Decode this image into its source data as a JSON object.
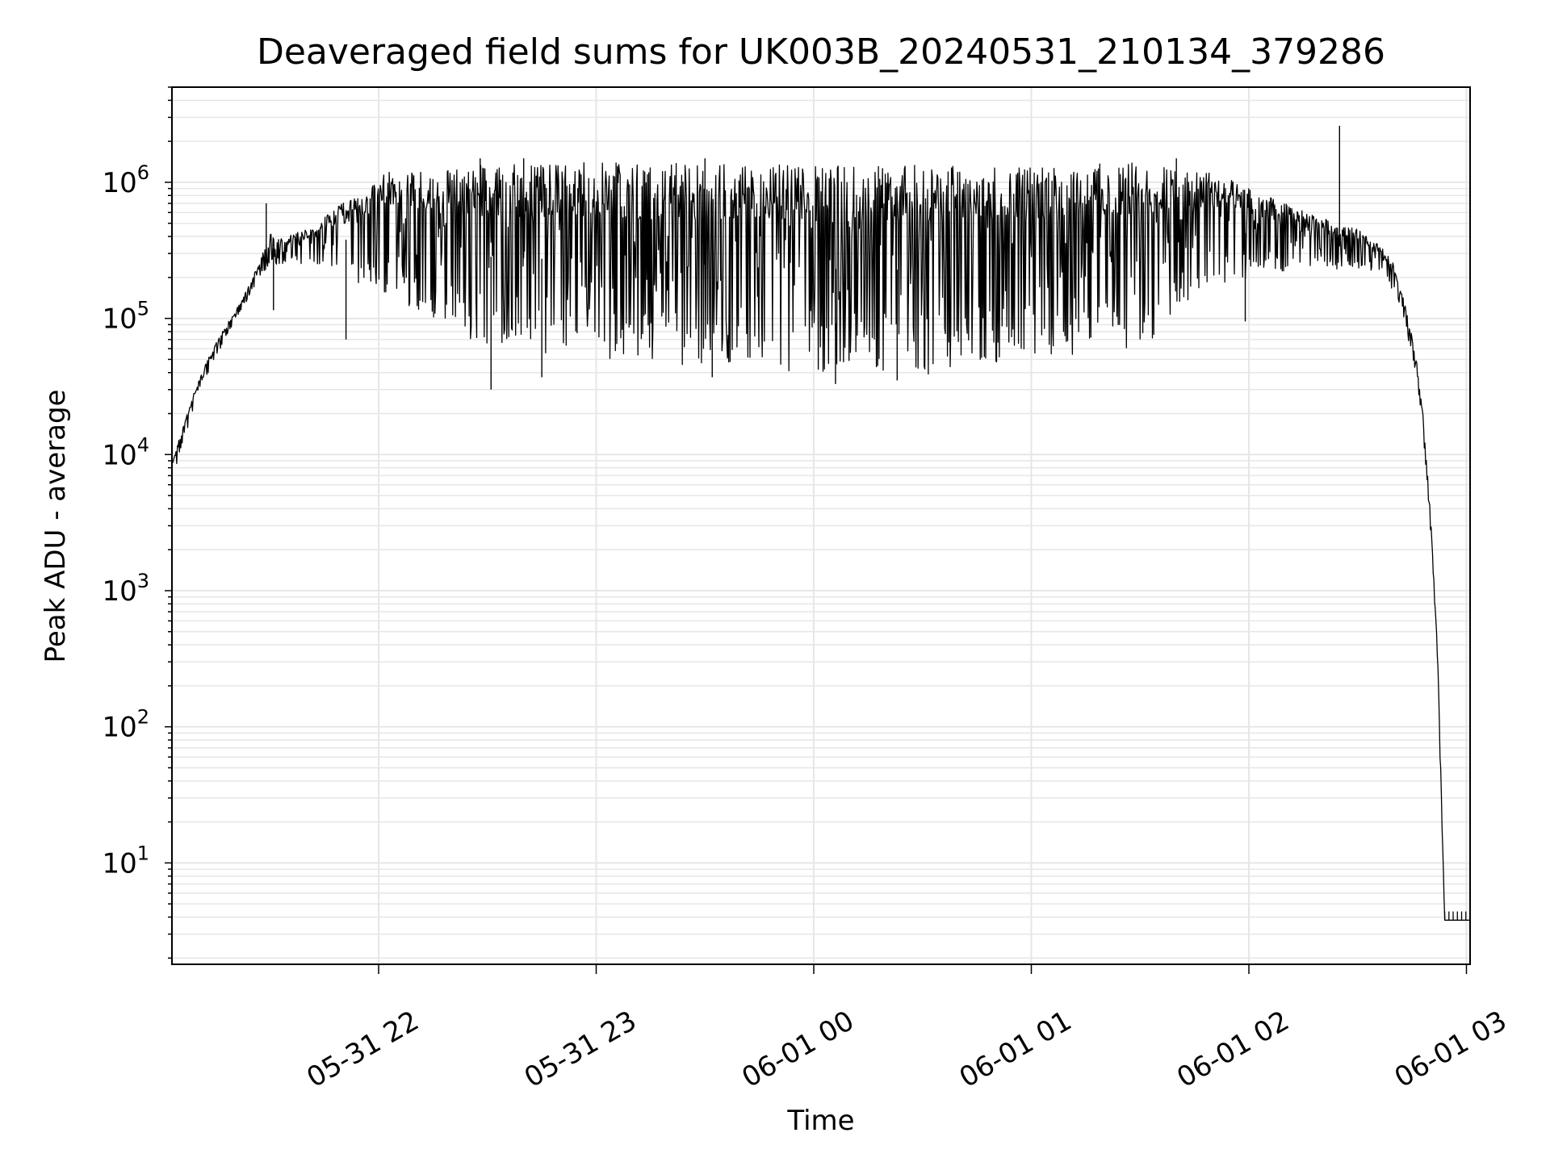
{
  "chart_data": {
    "type": "line",
    "title": "Deaveraged field sums for UK003B_20240531_210134_379286",
    "xlabel": "Time",
    "ylabel": "Peak ADU - average",
    "yscale": "log",
    "grid": true,
    "line_color": "#000000",
    "grid_color": "#e6e6e6",
    "xlim": [
      "2024-05-31 21:03",
      "2024-06-01 03:01"
    ],
    "ylim": [
      1.8,
      5000000
    ],
    "x_ticks": [
      {
        "value": "2024-05-31 22:00",
        "label": "05-31 22"
      },
      {
        "value": "2024-05-31 23:00",
        "label": "05-31 23"
      },
      {
        "value": "2024-06-01 00:00",
        "label": "06-01 00"
      },
      {
        "value": "2024-06-01 01:00",
        "label": "06-01 01"
      },
      {
        "value": "2024-06-01 02:00",
        "label": "06-01 02"
      },
      {
        "value": "2024-06-01 03:00",
        "label": "06-01 03"
      }
    ],
    "y_ticks": [
      {
        "value": 10,
        "base": "10",
        "exp": "1"
      },
      {
        "value": 100,
        "base": "10",
        "exp": "2"
      },
      {
        "value": 1000,
        "base": "10",
        "exp": "3"
      },
      {
        "value": 10000,
        "base": "10",
        "exp": "4"
      },
      {
        "value": 100000,
        "base": "10",
        "exp": "5"
      },
      {
        "value": 1000000,
        "base": "10",
        "exp": "6"
      }
    ],
    "envelope": [
      {
        "x": "2024-05-31 21:03",
        "low": 6000,
        "high": 9000
      },
      {
        "x": "2024-05-31 21:06",
        "low": 12000,
        "high": 16000
      },
      {
        "x": "2024-05-31 21:09",
        "low": 22000,
        "high": 28000
      },
      {
        "x": "2024-05-31 21:12",
        "low": 35000,
        "high": 45000
      },
      {
        "x": "2024-05-31 21:15",
        "low": 50000,
        "high": 65000
      },
      {
        "x": "2024-05-31 21:18",
        "low": 75000,
        "high": 90000
      },
      {
        "x": "2024-05-31 21:21",
        "low": 100000,
        "high": 120000
      },
      {
        "x": "2024-05-31 21:24",
        "low": 140000,
        "high": 170000
      },
      {
        "x": "2024-05-31 21:27",
        "low": 190000,
        "high": 260000
      },
      {
        "x": "2024-05-31 21:30",
        "low": 250000,
        "high": 450000
      },
      {
        "x": "2024-05-31 21:33",
        "low": 250000,
        "high": 400000
      },
      {
        "x": "2024-05-31 21:36",
        "low": 260000,
        "high": 420000
      },
      {
        "x": "2024-05-31 21:42",
        "low": 240000,
        "high": 480000
      },
      {
        "x": "2024-05-31 21:48",
        "low": 220000,
        "high": 650000
      },
      {
        "x": "2024-05-31 21:54",
        "low": 180000,
        "high": 800000
      },
      {
        "x": "2024-05-31 22:00",
        "low": 150000,
        "high": 1200000
      },
      {
        "x": "2024-05-31 22:15",
        "low": 100000,
        "high": 1250000
      },
      {
        "x": "2024-05-31 22:30",
        "low": 60000,
        "high": 1350000
      },
      {
        "x": "2024-05-31 23:00",
        "low": 50000,
        "high": 1400000
      },
      {
        "x": "2024-06-01 00:00",
        "low": 40000,
        "high": 1350000
      },
      {
        "x": "2024-06-01 00:30",
        "low": 38000,
        "high": 1350000
      },
      {
        "x": "2024-06-01 01:00",
        "low": 50000,
        "high": 1350000
      },
      {
        "x": "2024-06-01 01:30",
        "low": 60000,
        "high": 1400000
      },
      {
        "x": "2024-06-01 01:50",
        "low": 150000,
        "high": 1200000
      },
      {
        "x": "2024-06-01 02:00",
        "low": 200000,
        "high": 900000
      },
      {
        "x": "2024-06-01 02:10",
        "low": 220000,
        "high": 700000
      },
      {
        "x": "2024-06-01 02:20",
        "low": 230000,
        "high": 550000
      },
      {
        "x": "2024-06-01 02:30",
        "low": 230000,
        "high": 450000
      },
      {
        "x": "2024-06-01 02:36",
        "low": 220000,
        "high": 350000
      },
      {
        "x": "2024-06-01 02:40",
        "low": 150000,
        "high": 250000
      },
      {
        "x": "2024-06-01 02:43",
        "low": 90000,
        "high": 130000
      },
      {
        "x": "2024-06-01 02:46",
        "low": 40000,
        "high": 55000
      },
      {
        "x": "2024-06-01 02:48",
        "low": 15000,
        "high": 20000
      },
      {
        "x": "2024-06-01 02:50",
        "low": 3000,
        "high": 4000
      },
      {
        "x": "2024-06-01 02:52",
        "low": 300,
        "high": 400
      },
      {
        "x": "2024-06-01 02:53",
        "low": 30,
        "high": 40
      },
      {
        "x": "2024-06-01 02:54",
        "low": 3.8,
        "high": 3.8
      },
      {
        "x": "2024-06-01 03:01",
        "low": 3.8,
        "high": 3.8
      }
    ],
    "spikes_high": [
      {
        "x": "2024-05-31 21:29",
        "y": 700000
      },
      {
        "x": "2024-05-31 22:28",
        "y": 1500000
      },
      {
        "x": "2024-05-31 22:40",
        "y": 1500000
      },
      {
        "x": "2024-05-31 23:30",
        "y": 1500000
      },
      {
        "x": "2024-06-01 01:40",
        "y": 1500000
      },
      {
        "x": "2024-06-01 02:25",
        "y": 2600000
      }
    ],
    "spikes_low": [
      {
        "x": "2024-05-31 21:31",
        "y": 115000
      },
      {
        "x": "2024-05-31 21:51",
        "y": 70000
      },
      {
        "x": "2024-05-31 22:31",
        "y": 30000
      },
      {
        "x": "2024-05-31 22:45",
        "y": 37000
      },
      {
        "x": "2024-05-31 23:32",
        "y": 37000
      },
      {
        "x": "2024-06-01 00:06",
        "y": 33000
      },
      {
        "x": "2024-06-01 00:23",
        "y": 35000
      },
      {
        "x": "2024-06-01 01:59",
        "y": 95000
      }
    ]
  }
}
